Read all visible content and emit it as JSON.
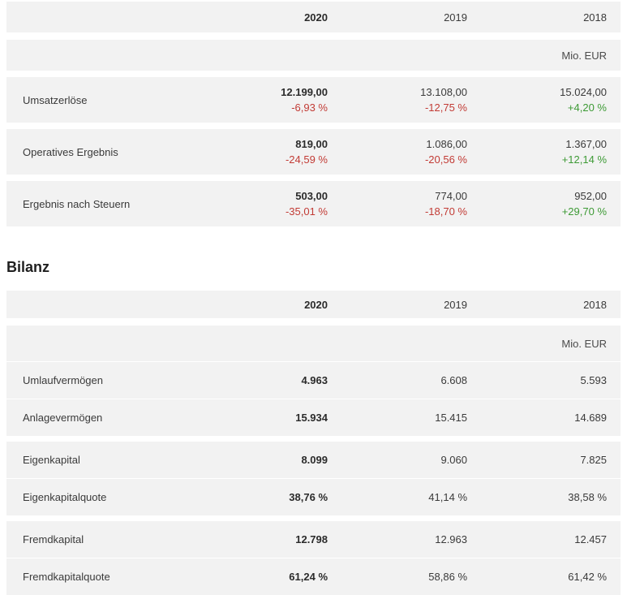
{
  "colors": {
    "negative": "#c23b35",
    "positive": "#3d9a35",
    "row_bg": "#f2f2f2"
  },
  "table1": {
    "years": [
      "2020",
      "2019",
      "2018"
    ],
    "unit": "Mio. EUR",
    "rows": [
      {
        "label": "Umsatzerlöse",
        "values": [
          "12.199,00",
          "13.108,00",
          "15.024,00"
        ],
        "changes": [
          "-6,93 %",
          "-12,75 %",
          "+4,20 %"
        ]
      },
      {
        "label": "Operatives Ergebnis",
        "values": [
          "819,00",
          "1.086,00",
          "1.367,00"
        ],
        "changes": [
          "-24,59 %",
          "-20,56 %",
          "+12,14 %"
        ]
      },
      {
        "label": "Ergebnis nach Steuern",
        "values": [
          "503,00",
          "774,00",
          "952,00"
        ],
        "changes": [
          "-35,01 %",
          "-18,70 %",
          "+29,70 %"
        ]
      }
    ]
  },
  "section_title": "Bilanz",
  "table2": {
    "years": [
      "2020",
      "2019",
      "2018"
    ],
    "unit": "Mio. EUR",
    "rows": [
      {
        "label": "Umlaufvermögen",
        "values": [
          "4.963",
          "6.608",
          "5.593"
        ]
      },
      {
        "label": "Anlagevermögen",
        "values": [
          "15.934",
          "15.415",
          "14.689"
        ]
      },
      {
        "label": "Eigenkapital",
        "values": [
          "8.099",
          "9.060",
          "7.825"
        ]
      },
      {
        "label": "Eigenkapitalquote",
        "values": [
          "38,76 %",
          "41,14 %",
          "38,58 %"
        ]
      },
      {
        "label": "Fremdkapital",
        "values": [
          "12.798",
          "12.963",
          "12.457"
        ]
      },
      {
        "label": "Fremdkapitalquote",
        "values": [
          "61,24 %",
          "58,86 %",
          "61,42 %"
        ]
      }
    ]
  }
}
